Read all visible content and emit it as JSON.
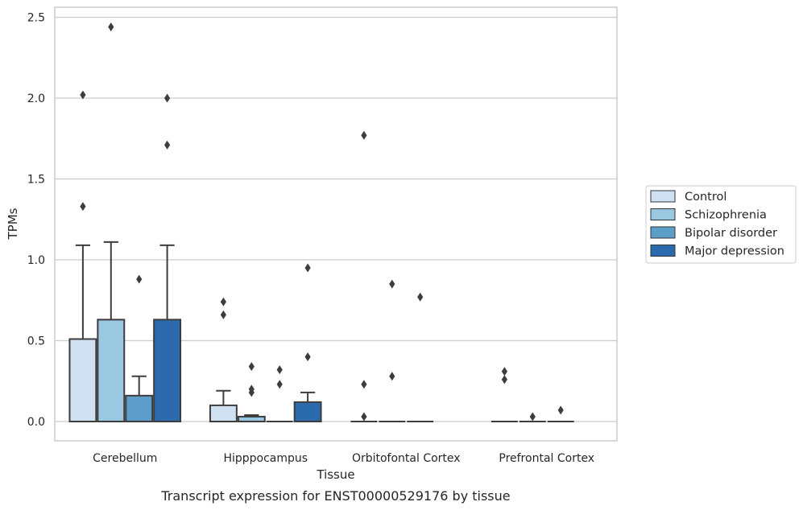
{
  "chart_data": {
    "type": "box",
    "title": "",
    "caption": "Transcript expression for ENST00000529176 by tissue",
    "xlabel": "Tissue",
    "ylabel": "TPMs",
    "ylim": [
      -0.12,
      2.56
    ],
    "yticks": [
      "0.0",
      "0.5",
      "1.0",
      "1.5",
      "2.0",
      "2.5"
    ],
    "ytick_values": [
      0,
      0.5,
      1.0,
      1.5,
      2.0,
      2.5
    ],
    "grid": true,
    "legend_position": "right",
    "categories": [
      "Cerebellum",
      "Hipppocampus",
      "Orbitofontal Cortex",
      "Prefrontal Cortex"
    ],
    "series": [
      {
        "name": "Control",
        "color": "#d0e1f2",
        "boxes": [
          {
            "q1": 0,
            "median": 0,
            "q3": 0.51,
            "whisker_low": 0,
            "whisker_high": 1.09,
            "outliers": [
              1.33,
              2.02
            ]
          },
          {
            "q1": 0,
            "median": 0,
            "q3": 0.1,
            "whisker_low": 0,
            "whisker_high": 0.19,
            "outliers": [
              0.66,
              0.74
            ]
          },
          {
            "q1": 0,
            "median": 0,
            "q3": 0,
            "whisker_low": 0,
            "whisker_high": 0,
            "outliers": [
              0.03,
              0.23,
              1.77
            ]
          },
          {
            "q1": 0,
            "median": 0,
            "q3": 0,
            "whisker_low": 0,
            "whisker_high": 0,
            "outliers": [
              0.26,
              0.31
            ]
          }
        ]
      },
      {
        "name": "Schizophrenia",
        "color": "#9ac8e0",
        "boxes": [
          {
            "q1": 0,
            "median": 0,
            "q3": 0.63,
            "whisker_low": 0,
            "whisker_high": 1.11,
            "outliers": [
              2.44
            ]
          },
          {
            "q1": 0,
            "median": 0,
            "q3": 0.03,
            "whisker_low": 0,
            "whisker_high": 0.04,
            "outliers": [
              0.18,
              0.2,
              0.34
            ]
          },
          {
            "q1": 0,
            "median": 0,
            "q3": 0,
            "whisker_low": 0,
            "whisker_high": 0,
            "outliers": [
              0.28,
              0.85
            ]
          },
          {
            "q1": 0,
            "median": 0,
            "q3": 0,
            "whisker_low": 0,
            "whisker_high": 0,
            "outliers": [
              0.03
            ]
          }
        ]
      },
      {
        "name": "Bipolar disorder",
        "color": "#5c9ec9",
        "boxes": [
          {
            "q1": 0,
            "median": 0,
            "q3": 0.16,
            "whisker_low": 0,
            "whisker_high": 0.28,
            "outliers": [
              0.88
            ]
          },
          {
            "q1": 0,
            "median": 0,
            "q3": 0,
            "whisker_low": 0,
            "whisker_high": 0,
            "outliers": [
              0.23,
              0.32
            ]
          },
          {
            "q1": 0,
            "median": 0,
            "q3": 0,
            "whisker_low": 0,
            "whisker_high": 0,
            "outliers": [
              0.77
            ]
          },
          {
            "q1": 0,
            "median": 0,
            "q3": 0,
            "whisker_low": 0,
            "whisker_high": 0,
            "outliers": [
              0.07
            ]
          }
        ]
      },
      {
        "name": "Major depression",
        "color": "#2a6aad",
        "boxes": [
          {
            "q1": 0,
            "median": 0,
            "q3": 0.63,
            "whisker_low": 0,
            "whisker_high": 1.09,
            "outliers": [
              1.71,
              2.0
            ]
          },
          {
            "q1": 0,
            "median": 0,
            "q3": 0.12,
            "whisker_low": 0,
            "whisker_high": 0.18,
            "outliers": [
              0.4,
              0.95
            ]
          },
          null,
          null
        ]
      }
    ]
  }
}
